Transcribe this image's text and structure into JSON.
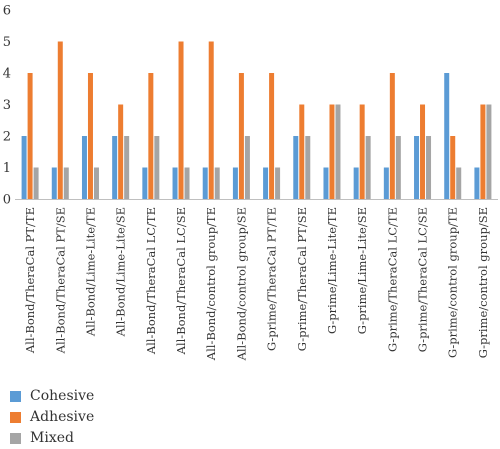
{
  "chart_data": {
    "type": "bar",
    "categories": [
      "All-Bond/TheraCal PT/TE",
      "All-Bond/TheraCal PT/SE",
      "All-Bond/Lime-Lite/TE",
      "All-Bond/Lime-Lite/SE",
      "All-Bond/TheraCal LC/TE",
      "All-Bond/TheraCal LC/SE",
      "All-Bond/control group/TE",
      "All-Bond/control group/SE",
      "G-prime/TheraCal PT/TE",
      "G-prime/TheraCal PT/SE",
      "G-prime/Lime-Lite/TE",
      "G-prime/Lime-Lite/SE",
      "G-prime/TheraCal LC/TE",
      "G-prime/TheraCal LC/SE",
      "G-prime/control group/TE",
      "G-prime/control group/SE"
    ],
    "series": [
      {
        "name": "Cohesive",
        "color": "#5b9bd5",
        "values": [
          2,
          1,
          2,
          2,
          1,
          1,
          1,
          1,
          1,
          2,
          1,
          1,
          1,
          2,
          4,
          1
        ]
      },
      {
        "name": "Adhesive",
        "color": "#ed7d31",
        "values": [
          4,
          5,
          4,
          3,
          4,
          5,
          5,
          4,
          4,
          3,
          3,
          3,
          4,
          3,
          2,
          3
        ]
      },
      {
        "name": "Mixed",
        "color": "#a5a5a5",
        "values": [
          1,
          1,
          1,
          2,
          2,
          1,
          1,
          2,
          1,
          2,
          3,
          2,
          2,
          2,
          1,
          3
        ]
      }
    ],
    "yticks": [
      "0",
      "1",
      "2",
      "3",
      "4",
      "5",
      "6"
    ],
    "ylim": [
      0,
      6
    ],
    "grid": false,
    "legend_position": "bottom-left",
    "title": "",
    "xlabel": "",
    "ylabel": ""
  }
}
